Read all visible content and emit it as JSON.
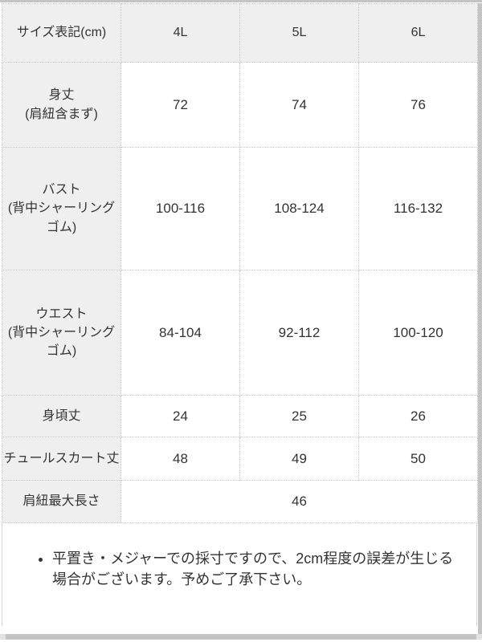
{
  "table": {
    "header": {
      "label": "サイズ表記(cm)",
      "columns": [
        "4L",
        "5L",
        "6L"
      ]
    },
    "rows": [
      {
        "label": "身丈\n(肩紐含まず)",
        "values": [
          "72",
          "74",
          "76"
        ]
      },
      {
        "label": "バスト\n(背中シャーリング\nゴム)",
        "values": [
          "100-116",
          "108-124",
          "116-132"
        ]
      },
      {
        "label": "ウエスト\n(背中シャーリング\nゴム)",
        "values": [
          "84-104",
          "92-112",
          "100-120"
        ]
      },
      {
        "label": "身頃丈",
        "values": [
          "24",
          "25",
          "26"
        ]
      },
      {
        "label": "チュールスカート丈",
        "values": [
          "48",
          "49",
          "50"
        ]
      },
      {
        "label": "肩紐最大長さ",
        "merged_value": "46"
      }
    ]
  },
  "note": {
    "items": [
      "平置き・メジャーでの採寸ですので、2cm程度の誤差が生じる場合がございます。予めご了承下さい。"
    ]
  },
  "colors": {
    "header_cell_bg": "#efefef",
    "cell_border": "#c9c9c9",
    "text": "#333333",
    "scrollbar": "#c4c4c4"
  }
}
